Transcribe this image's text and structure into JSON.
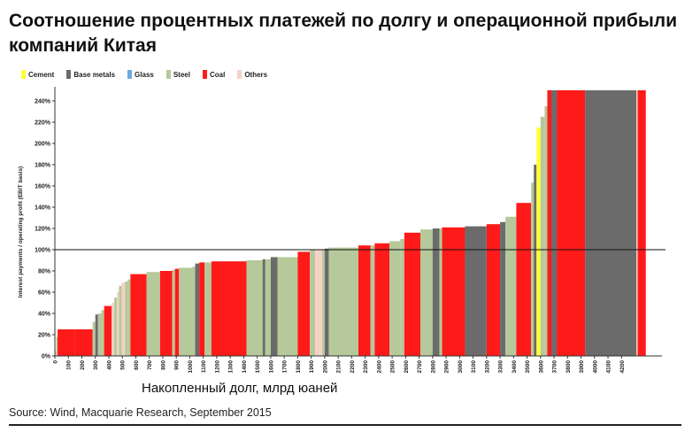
{
  "title": "Соотношение процентных платежей по долгу и операционной прибыли компаний Китая",
  "colors": {
    "Cement": "#ffff33",
    "Base metals": "#6b6b6b",
    "Glass": "#6fa8dc",
    "Steel": "#b5c99a",
    "Coal": "#ff1a1a",
    "Others": "#f8d0c8"
  },
  "legend": [
    {
      "name": "Cement",
      "color": "#ffff33"
    },
    {
      "name": "Base metals",
      "color": "#6b6b6b"
    },
    {
      "name": "Glass",
      "color": "#6fa8dc"
    },
    {
      "name": "Steel",
      "color": "#b5c99a"
    },
    {
      "name": "Coal",
      "color": "#ff1a1a"
    },
    {
      "name": "Others",
      "color": "#f8d0c8"
    }
  ],
  "x_caption": "Накопленный долг, млрд юаней",
  "source": "Source: Wind, Macquarie Research, September 2015",
  "chart_data": {
    "type": "bar",
    "subtype": "variable-width (cumulative debt on x, ratio on y)",
    "xlabel": "Накопленный долг, млрд юаней",
    "ylabel": "Interest payments / operating profit (EBIT basis)",
    "xlim": [
      0,
      4500
    ],
    "ylim": [
      0,
      250
    ],
    "x_ticks": [
      "0",
      "100",
      "200",
      "300",
      "400",
      "500",
      "600",
      "700",
      "800",
      "900",
      "1000",
      "1100",
      "1200",
      "1300",
      "1400",
      "1500",
      "1600",
      "1700",
      "1800",
      "1900",
      "2000",
      "2100",
      "2200",
      "2300",
      "2400",
      "2500",
      "2600",
      "2700",
      "2800",
      "2900",
      "3000",
      "3100",
      "3200",
      "3300",
      "3400",
      "3500",
      "3600",
      "3700",
      "3800",
      "3900",
      "4000",
      "4100",
      "4200"
    ],
    "y_ticks": [
      "0%",
      "20%",
      "40%",
      "60%",
      "80%",
      "100%",
      "120%",
      "140%",
      "160%",
      "180%",
      "200%",
      "220%",
      "240%"
    ],
    "reference_line": 100,
    "grid": false,
    "legend_position": "top-left",
    "bars": [
      {
        "x0": 0,
        "x1": 10,
        "value": 5,
        "sector": "Others"
      },
      {
        "x0": 10,
        "x1": 20,
        "value": 18,
        "sector": "Steel"
      },
      {
        "x0": 20,
        "x1": 150,
        "value": 25,
        "sector": "Coal"
      },
      {
        "x0": 150,
        "x1": 280,
        "value": 25,
        "sector": "Coal"
      },
      {
        "x0": 280,
        "x1": 300,
        "value": 32,
        "sector": "Steel"
      },
      {
        "x0": 300,
        "x1": 320,
        "value": 39,
        "sector": "Base metals"
      },
      {
        "x0": 320,
        "x1": 345,
        "value": 40,
        "sector": "Steel"
      },
      {
        "x0": 345,
        "x1": 365,
        "value": 43,
        "sector": "Steel"
      },
      {
        "x0": 365,
        "x1": 420,
        "value": 47,
        "sector": "Coal"
      },
      {
        "x0": 420,
        "x1": 440,
        "value": 50,
        "sector": "Others"
      },
      {
        "x0": 440,
        "x1": 460,
        "value": 55,
        "sector": "Steel"
      },
      {
        "x0": 460,
        "x1": 475,
        "value": 60,
        "sector": "Others"
      },
      {
        "x0": 475,
        "x1": 495,
        "value": 66,
        "sector": "Steel"
      },
      {
        "x0": 495,
        "x1": 520,
        "value": 69,
        "sector": "Others"
      },
      {
        "x0": 520,
        "x1": 540,
        "value": 70,
        "sector": "Steel"
      },
      {
        "x0": 540,
        "x1": 560,
        "value": 72,
        "sector": "Steel"
      },
      {
        "x0": 560,
        "x1": 680,
        "value": 77,
        "sector": "Coal"
      },
      {
        "x0": 680,
        "x1": 780,
        "value": 79,
        "sector": "Steel"
      },
      {
        "x0": 780,
        "x1": 870,
        "value": 80,
        "sector": "Coal"
      },
      {
        "x0": 870,
        "x1": 890,
        "value": 81,
        "sector": "Steel"
      },
      {
        "x0": 890,
        "x1": 920,
        "value": 82,
        "sector": "Coal"
      },
      {
        "x0": 920,
        "x1": 1020,
        "value": 83,
        "sector": "Steel"
      },
      {
        "x0": 1020,
        "x1": 1040,
        "value": 84,
        "sector": "Steel"
      },
      {
        "x0": 1040,
        "x1": 1070,
        "value": 87,
        "sector": "Base metals"
      },
      {
        "x0": 1070,
        "x1": 1110,
        "value": 88,
        "sector": "Coal"
      },
      {
        "x0": 1110,
        "x1": 1160,
        "value": 88,
        "sector": "Steel"
      },
      {
        "x0": 1160,
        "x1": 1420,
        "value": 89,
        "sector": "Coal"
      },
      {
        "x0": 1420,
        "x1": 1540,
        "value": 90,
        "sector": "Steel"
      },
      {
        "x0": 1540,
        "x1": 1560,
        "value": 91,
        "sector": "Base metals"
      },
      {
        "x0": 1560,
        "x1": 1600,
        "value": 91,
        "sector": "Steel"
      },
      {
        "x0": 1600,
        "x1": 1650,
        "value": 93,
        "sector": "Base metals"
      },
      {
        "x0": 1650,
        "x1": 1800,
        "value": 93,
        "sector": "Steel"
      },
      {
        "x0": 1800,
        "x1": 1890,
        "value": 98,
        "sector": "Coal"
      },
      {
        "x0": 1890,
        "x1": 1930,
        "value": 100,
        "sector": "Steel"
      },
      {
        "x0": 1930,
        "x1": 1980,
        "value": 100,
        "sector": "Others"
      },
      {
        "x0": 1980,
        "x1": 2000,
        "value": 100,
        "sector": "Steel"
      },
      {
        "x0": 2000,
        "x1": 2030,
        "value": 101,
        "sector": "Base metals"
      },
      {
        "x0": 2030,
        "x1": 2250,
        "value": 102,
        "sector": "Steel"
      },
      {
        "x0": 2250,
        "x1": 2340,
        "value": 104,
        "sector": "Coal"
      },
      {
        "x0": 2340,
        "x1": 2370,
        "value": 104,
        "sector": "Steel"
      },
      {
        "x0": 2370,
        "x1": 2480,
        "value": 106,
        "sector": "Coal"
      },
      {
        "x0": 2480,
        "x1": 2560,
        "value": 108,
        "sector": "Steel"
      },
      {
        "x0": 2560,
        "x1": 2590,
        "value": 110,
        "sector": "Steel"
      },
      {
        "x0": 2590,
        "x1": 2710,
        "value": 116,
        "sector": "Coal"
      },
      {
        "x0": 2710,
        "x1": 2800,
        "value": 119,
        "sector": "Steel"
      },
      {
        "x0": 2800,
        "x1": 2850,
        "value": 120,
        "sector": "Base metals"
      },
      {
        "x0": 2850,
        "x1": 2870,
        "value": 120,
        "sector": "Steel"
      },
      {
        "x0": 2870,
        "x1": 3040,
        "value": 121,
        "sector": "Coal"
      },
      {
        "x0": 3040,
        "x1": 3200,
        "value": 122,
        "sector": "Base metals"
      },
      {
        "x0": 3200,
        "x1": 3300,
        "value": 124,
        "sector": "Coal"
      },
      {
        "x0": 3300,
        "x1": 3340,
        "value": 126,
        "sector": "Base metals"
      },
      {
        "x0": 3340,
        "x1": 3420,
        "value": 131,
        "sector": "Steel"
      },
      {
        "x0": 3420,
        "x1": 3530,
        "value": 144,
        "sector": "Coal"
      },
      {
        "x0": 3530,
        "x1": 3550,
        "value": 163,
        "sector": "Steel"
      },
      {
        "x0": 3550,
        "x1": 3570,
        "value": 180,
        "sector": "Base metals"
      },
      {
        "x0": 3570,
        "x1": 3600,
        "value": 215,
        "sector": "Cement"
      },
      {
        "x0": 3600,
        "x1": 3630,
        "value": 225,
        "sector": "Steel"
      },
      {
        "x0": 3630,
        "x1": 3650,
        "value": 235,
        "sector": "Steel"
      },
      {
        "x0": 3650,
        "x1": 3680,
        "value": 250,
        "sector": "Coal"
      },
      {
        "x0": 3680,
        "x1": 3720,
        "value": 250,
        "sector": "Base metals"
      },
      {
        "x0": 3720,
        "x1": 3930,
        "value": 250,
        "sector": "Coal"
      },
      {
        "x0": 3930,
        "x1": 4310,
        "value": 250,
        "sector": "Base metals"
      },
      {
        "x0": 4310,
        "x1": 4320,
        "value": 250,
        "sector": "Others"
      },
      {
        "x0": 4320,
        "x1": 4380,
        "value": 250,
        "sector": "Coal"
      }
    ]
  }
}
